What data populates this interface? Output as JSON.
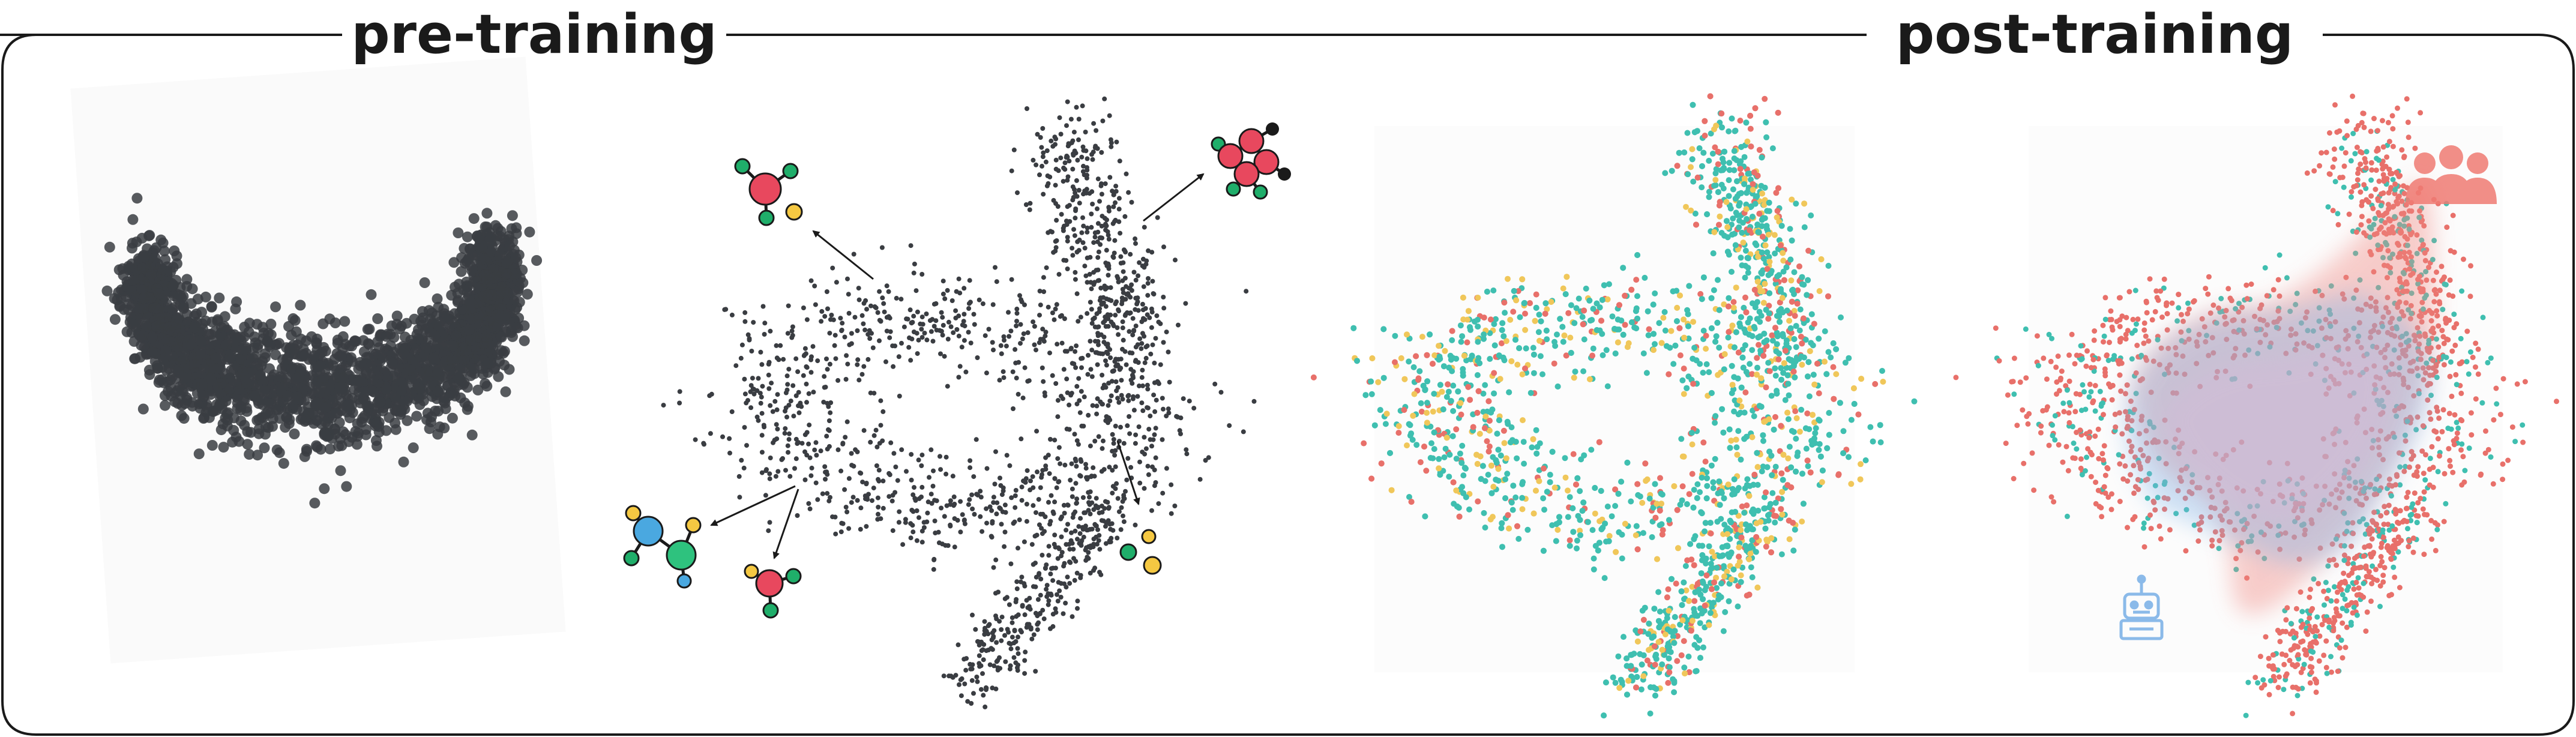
{
  "sections": {
    "pre_training": {
      "title": "pre-training"
    },
    "post_training": {
      "title": "post-training"
    }
  },
  "panels": [
    {
      "name": "pre-training-cloud-panel",
      "description_kind": "dense point cloud"
    },
    {
      "name": "pre-training-swirl-panel",
      "description_kind": "swirl point cloud with molecule annotations"
    },
    {
      "name": "post-training-colored-swirl-panel",
      "description_kind": "colored swirl point cloud"
    },
    {
      "name": "post-training-density-panel",
      "description_kind": "swirl with density overlays"
    }
  ],
  "icons": [
    "molecule-icon",
    "atom-pair-icon",
    "people-icon",
    "robot-icon"
  ],
  "colors": {
    "frame": "#1a1a1a",
    "points_dark": "#3a3d42",
    "points_teal": "#3fbfb0",
    "points_red": "#e8706a",
    "points_yellow": "#f0c75a",
    "human_density": "#f08a84",
    "model_density": "#7fb3e8",
    "atom_red": "#e8485e",
    "atom_green": "#1fae6a",
    "atom_yellow": "#f5c842",
    "atom_blue": "#4aa8e0",
    "people_icon": "#f07b73",
    "robot_icon": "#7fb3e8"
  }
}
